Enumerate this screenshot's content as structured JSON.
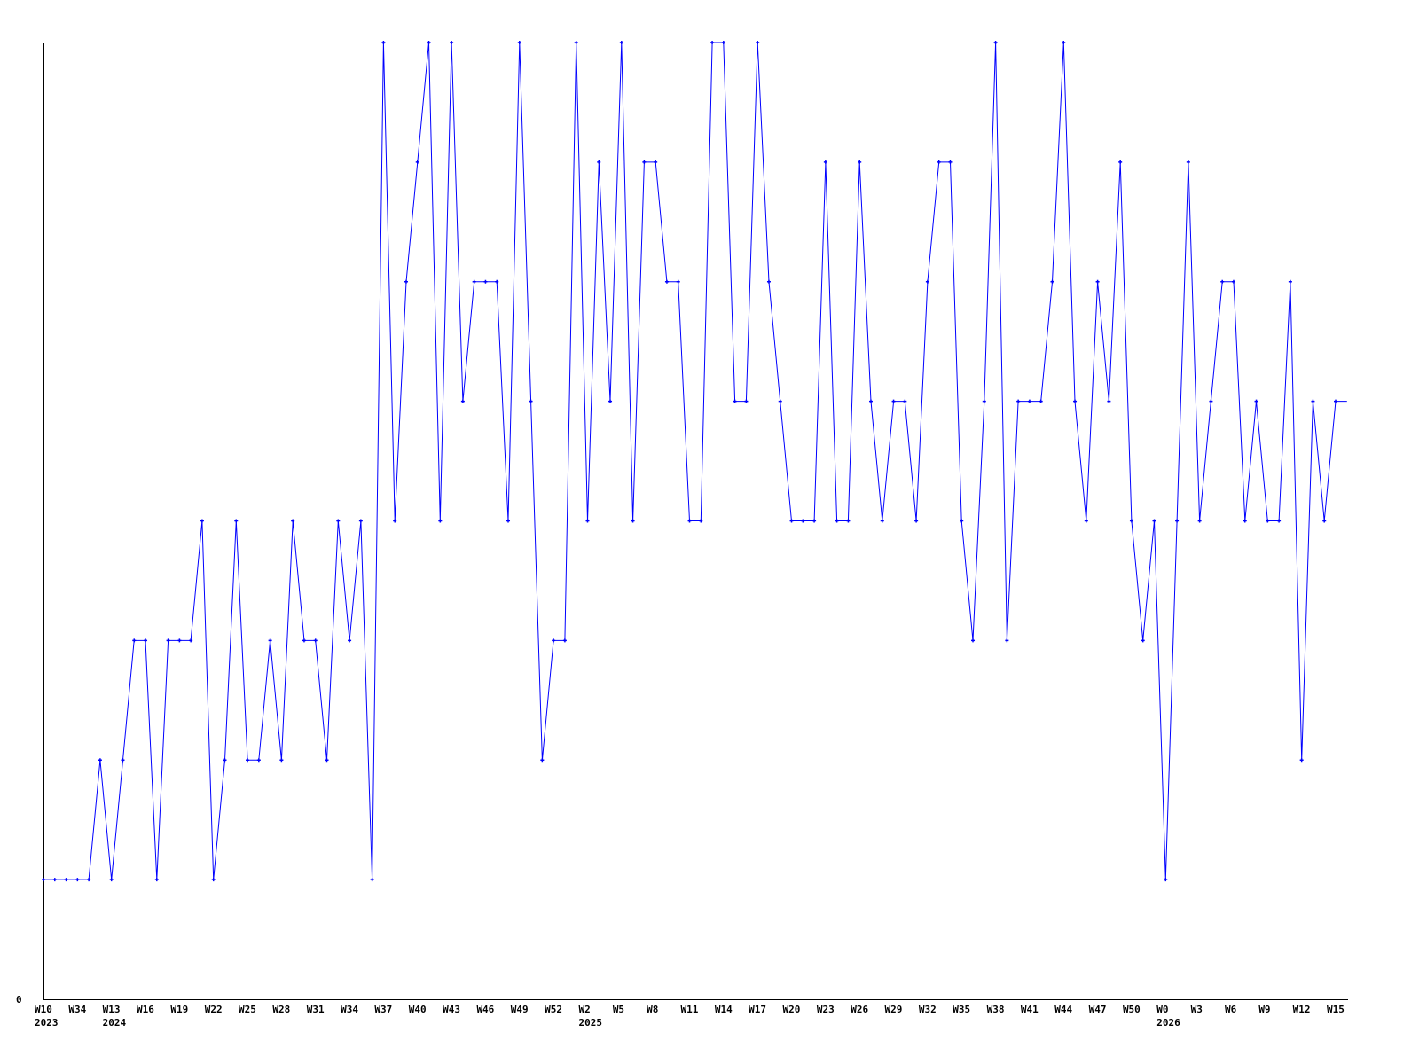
{
  "chart_data": {
    "type": "line",
    "title": "",
    "xlabel": "",
    "ylabel": "",
    "ylim": [
      0,
      8
    ],
    "y_tick_labels": [
      "0"
    ],
    "grid": false,
    "line_color": "#0000ff",
    "axis_color": "#000000",
    "values": [
      1,
      1,
      1,
      1,
      1,
      2,
      1,
      2,
      3,
      3,
      1,
      3,
      3,
      3,
      4,
      1,
      2,
      4,
      2,
      2,
      3,
      2,
      4,
      3,
      3,
      2,
      4,
      3,
      4,
      1,
      8,
      4,
      6,
      7,
      8,
      4,
      8,
      5,
      6,
      6,
      6,
      4,
      8,
      5,
      2,
      3,
      3,
      8,
      4,
      7,
      5,
      8,
      4,
      7,
      7,
      6,
      6,
      4,
      4,
      8,
      8,
      5,
      5,
      8,
      6,
      5,
      4,
      4,
      4,
      7,
      4,
      4,
      7,
      5,
      4,
      5,
      5,
      4,
      6,
      7,
      7,
      4,
      3,
      5,
      8,
      3,
      5,
      5,
      5,
      6,
      8,
      5,
      4,
      6,
      5,
      7,
      4,
      3,
      4,
      1,
      4,
      7,
      4,
      5,
      6,
      6,
      4,
      5,
      4,
      4,
      6,
      2,
      5,
      4,
      5,
      5
    ],
    "x_ticks": [
      {
        "index": 0,
        "label": "W10",
        "year": "2023"
      },
      {
        "index": 3,
        "label": "W34"
      },
      {
        "index": 6,
        "label": "W13",
        "year": "2024"
      },
      {
        "index": 9,
        "label": "W16"
      },
      {
        "index": 12,
        "label": "W19"
      },
      {
        "index": 15,
        "label": "W22"
      },
      {
        "index": 18,
        "label": "W25"
      },
      {
        "index": 21,
        "label": "W28"
      },
      {
        "index": 24,
        "label": "W31"
      },
      {
        "index": 27,
        "label": "W34"
      },
      {
        "index": 30,
        "label": "W37"
      },
      {
        "index": 33,
        "label": "W40"
      },
      {
        "index": 36,
        "label": "W43"
      },
      {
        "index": 39,
        "label": "W46"
      },
      {
        "index": 42,
        "label": "W49"
      },
      {
        "index": 45,
        "label": "W52"
      },
      {
        "index": 48,
        "label": "W2",
        "year": "2025"
      },
      {
        "index": 51,
        "label": "W5"
      },
      {
        "index": 54,
        "label": "W8"
      },
      {
        "index": 57,
        "label": "W11"
      },
      {
        "index": 60,
        "label": "W14"
      },
      {
        "index": 63,
        "label": "W17"
      },
      {
        "index": 66,
        "label": "W20"
      },
      {
        "index": 69,
        "label": "W23"
      },
      {
        "index": 72,
        "label": "W26"
      },
      {
        "index": 75,
        "label": "W29"
      },
      {
        "index": 78,
        "label": "W32"
      },
      {
        "index": 81,
        "label": "W35"
      },
      {
        "index": 84,
        "label": "W38"
      },
      {
        "index": 87,
        "label": "W41"
      },
      {
        "index": 90,
        "label": "W44"
      },
      {
        "index": 93,
        "label": "W47"
      },
      {
        "index": 96,
        "label": "W50"
      },
      {
        "index": 99,
        "label": "W0",
        "year": "2026"
      },
      {
        "index": 102,
        "label": "W3"
      },
      {
        "index": 105,
        "label": "W6"
      },
      {
        "index": 108,
        "label": "W9"
      },
      {
        "index": 111,
        "label": "W12"
      },
      {
        "index": 114,
        "label": "W15"
      }
    ]
  }
}
